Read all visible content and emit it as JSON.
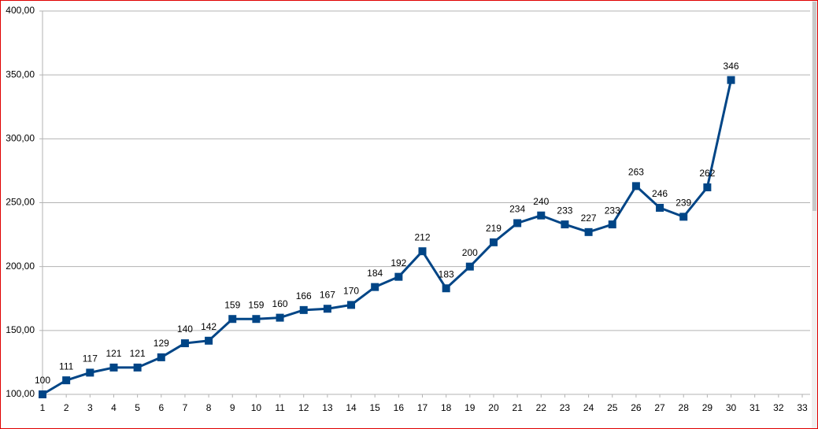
{
  "chart_data": {
    "type": "line",
    "categories": [
      "1",
      "2",
      "3",
      "4",
      "5",
      "6",
      "7",
      "8",
      "9",
      "10",
      "11",
      "12",
      "13",
      "14",
      "15",
      "16",
      "17",
      "18",
      "19",
      "20",
      "21",
      "22",
      "23",
      "24",
      "25",
      "26",
      "27",
      "28",
      "29",
      "30",
      "31",
      "32",
      "33"
    ],
    "values": [
      100,
      111,
      117,
      121,
      121,
      129,
      140,
      142,
      159,
      159,
      160,
      166,
      167,
      170,
      184,
      192,
      212,
      183,
      200,
      219,
      234,
      240,
      233,
      227,
      233,
      263,
      246,
      239,
      262,
      346,
      null,
      null,
      null
    ],
    "color": "#004586",
    "ylim": [
      100,
      400
    ],
    "yticks": [
      {
        "value": 100,
        "label": "100,00"
      },
      {
        "value": 150,
        "label": "150,00"
      },
      {
        "value": 200,
        "label": "200,00"
      },
      {
        "value": 250,
        "label": "250,00"
      },
      {
        "value": 300,
        "label": "300,00"
      },
      {
        "value": 350,
        "label": "350,00"
      },
      {
        "value": 400,
        "label": "400,00"
      }
    ],
    "grid": true,
    "marker": "square",
    "data_labels": true
  }
}
